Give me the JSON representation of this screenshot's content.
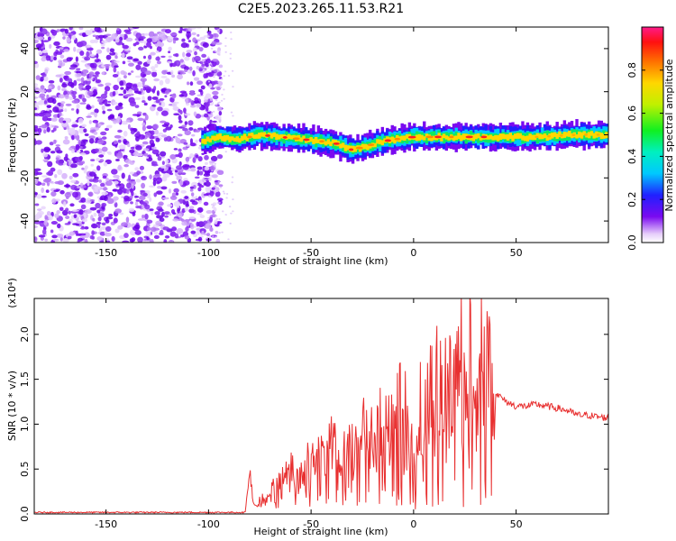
{
  "title": "C2E5.2023.265.11.53.R21",
  "chart_data": [
    {
      "type": "heatmap",
      "xlabel": "Height of straight line (km)",
      "ylabel": "Frequency (Hz)",
      "xlim": [
        -185,
        95
      ],
      "ylim": [
        -50,
        50
      ],
      "x_ticks": [
        -150,
        -100,
        -50,
        0,
        50
      ],
      "y_ticks": [
        -40,
        -20,
        0,
        20,
        40
      ],
      "noise_region": {
        "x": [
          -185,
          -100
        ],
        "amplitude": "low-to-medium"
      },
      "signal_ridge": [
        {
          "x": -103,
          "y": -3
        },
        {
          "x": -95,
          "y": -1
        },
        {
          "x": -85,
          "y": -2
        },
        {
          "x": -75,
          "y": 0
        },
        {
          "x": -65,
          "y": -1
        },
        {
          "x": -55,
          "y": -2
        },
        {
          "x": -45,
          "y": -3
        },
        {
          "x": -38,
          "y": -4
        },
        {
          "x": -30,
          "y": -7
        },
        {
          "x": -22,
          "y": -5
        },
        {
          "x": -15,
          "y": -3
        },
        {
          "x": -8,
          "y": -2
        },
        {
          "x": 0,
          "y": -1
        },
        {
          "x": 10,
          "y": -1
        },
        {
          "x": 20,
          "y": -1
        },
        {
          "x": 30,
          "y": -1
        },
        {
          "x": 40,
          "y": -1
        },
        {
          "x": 60,
          "y": -1
        },
        {
          "x": 80,
          "y": 0
        },
        {
          "x": 95,
          "y": 0
        }
      ],
      "colorbar": {
        "label": "Normalized spectral amplitude",
        "range": [
          0,
          1
        ],
        "ticks": [
          0.0,
          0.2,
          0.4,
          0.6,
          0.8
        ],
        "tick_labels": [
          "0.0",
          "0.2",
          "0.4",
          "0.6",
          "0.8"
        ]
      }
    },
    {
      "type": "line",
      "xlabel": "Height of straight line (km)",
      "ylabel": "SNR (10 * v/v)",
      "y_multiplier_label": "(x10⁴)",
      "xlim": [
        -185,
        95
      ],
      "ylim": [
        0,
        2.4
      ],
      "x_ticks": [
        -150,
        -100,
        -50,
        0,
        50
      ],
      "y_ticks": [
        0.0,
        0.5,
        1.0,
        1.5,
        2.0
      ],
      "y_tick_labels": [
        "0.0",
        "0.5",
        "1.0",
        "1.5",
        "2.0"
      ],
      "series": [
        {
          "color": "#e83030",
          "x": [
            -185,
            -160,
            -140,
            -120,
            -100,
            -90,
            -82,
            -80,
            -78,
            -76,
            -72,
            -66,
            -60,
            -55,
            -50,
            -45,
            -40,
            -35,
            -30,
            -25,
            -20,
            -15,
            -10,
            -5,
            0,
            5,
            10,
            15,
            20,
            25,
            28,
            30,
            32,
            35,
            38,
            40,
            45,
            50,
            55,
            60,
            65,
            70,
            75,
            80,
            85,
            90,
            95
          ],
          "y": [
            0.01,
            0.01,
            0.01,
            0.01,
            0.01,
            0.02,
            0.06,
            0.5,
            0.1,
            0.08,
            0.15,
            0.25,
            0.35,
            0.3,
            0.45,
            0.5,
            0.65,
            0.55,
            0.7,
            0.75,
            0.8,
            0.85,
            0.9,
            1.0,
            1.05,
            1.1,
            1.2,
            1.25,
            1.3,
            1.4,
            1.5,
            1.6,
            1.45,
            1.55,
            1.4,
            1.35,
            1.25,
            1.2,
            1.2,
            1.22,
            1.2,
            1.18,
            1.15,
            1.1,
            1.1,
            1.08,
            1.07
          ]
        }
      ]
    }
  ]
}
